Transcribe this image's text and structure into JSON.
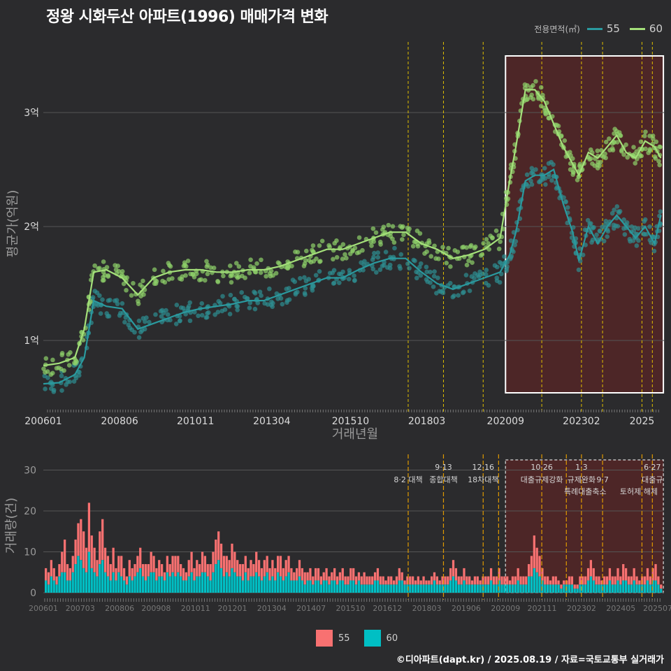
{
  "title": "정왕 시화두산 아파트(1996) 매매가격 변화",
  "legend_top": {
    "title": "전용면적(㎡)",
    "items": [
      {
        "label": "55",
        "color": "#2a9a9f"
      },
      {
        "label": "60",
        "color": "#a4e07a"
      }
    ]
  },
  "legend_bottom": {
    "items": [
      {
        "label": "55",
        "color": "#f87171"
      },
      {
        "label": "60",
        "color": "#00bfc4"
      }
    ]
  },
  "credit": "©디아파트(dapt.kr) / 2025.08.19 / 자료=국토교통부 실거래가",
  "colors": {
    "bg": "#2b2b2d",
    "s55_line": "#2a9a9f",
    "s60_line": "#a4e07a",
    "s55_point": "#2e8f92",
    "s60_point": "#8fd16a",
    "bar55": "#f87171",
    "bar60": "#00bfc4",
    "policy_line": "#e0c000",
    "policy_line2": "#e09a00",
    "highlight": "#5a2626"
  },
  "chart_data": [
    {
      "type": "line",
      "title": "정왕 시화두산 아파트(1996) 매매가격 변화",
      "xlabel": "거래년월",
      "ylabel": "평균가(억원)",
      "x_tick_labels": [
        "200601",
        "200806",
        "201011",
        "201304",
        "201510",
        "201803",
        "202009",
        "202302",
        "2025"
      ],
      "y_tick_labels": [
        "1억",
        "2억",
        "3억"
      ],
      "y_ticks": [
        1,
        2,
        3
      ],
      "ylim": [
        0.4,
        3.65
      ],
      "xlim": [
        2006.0,
        2025.7
      ],
      "grid": true,
      "legend": "top-right",
      "policy_lines_year": [
        2017.58,
        2018.7,
        2019.96,
        2021.82,
        2023.08,
        2023.75,
        2025.0,
        2025.33
      ],
      "highlight_range_year": [
        2020.67,
        2025.68
      ],
      "series": [
        {
          "name": "55",
          "x": [
            2006.0,
            2006.5,
            2007.0,
            2007.3,
            2007.6,
            2008.0,
            2008.5,
            2009.0,
            2009.5,
            2010.0,
            2010.5,
            2011.0,
            2011.5,
            2012.0,
            2012.5,
            2013.0,
            2013.5,
            2014.0,
            2014.5,
            2015.0,
            2015.5,
            2016.0,
            2016.5,
            2017.0,
            2017.5,
            2018.0,
            2018.5,
            2019.0,
            2019.5,
            2020.0,
            2020.5,
            2020.8,
            2021.0,
            2021.3,
            2021.6,
            2021.9,
            2022.2,
            2022.5,
            2022.8,
            2023.0,
            2023.3,
            2023.6,
            2023.9,
            2024.2,
            2024.5,
            2024.8,
            2025.1,
            2025.4,
            2025.6
          ],
          "y": [
            0.62,
            0.63,
            0.7,
            0.85,
            1.35,
            1.3,
            1.28,
            1.1,
            1.15,
            1.2,
            1.25,
            1.28,
            1.3,
            1.32,
            1.35,
            1.35,
            1.4,
            1.45,
            1.5,
            1.55,
            1.55,
            1.62,
            1.68,
            1.72,
            1.72,
            1.6,
            1.5,
            1.45,
            1.5,
            1.55,
            1.6,
            1.75,
            1.95,
            2.4,
            2.45,
            2.45,
            2.5,
            2.2,
            1.95,
            1.7,
            2.0,
            1.85,
            2.0,
            2.1,
            2.0,
            1.9,
            2.0,
            1.85,
            2.1
          ]
        },
        {
          "name": "60",
          "x": [
            2006.0,
            2006.5,
            2007.0,
            2007.3,
            2007.6,
            2008.0,
            2008.5,
            2009.0,
            2009.5,
            2010.0,
            2010.5,
            2011.0,
            2011.5,
            2012.0,
            2012.5,
            2013.0,
            2013.5,
            2014.0,
            2014.5,
            2015.0,
            2015.5,
            2016.0,
            2016.5,
            2017.0,
            2017.5,
            2018.0,
            2018.5,
            2019.0,
            2019.5,
            2020.0,
            2020.5,
            2020.8,
            2021.0,
            2021.3,
            2021.6,
            2021.9,
            2022.2,
            2022.5,
            2022.8,
            2023.0,
            2023.3,
            2023.6,
            2023.9,
            2024.2,
            2024.5,
            2024.8,
            2025.1,
            2025.4,
            2025.6
          ],
          "y": [
            0.78,
            0.8,
            0.85,
            1.1,
            1.6,
            1.62,
            1.55,
            1.4,
            1.55,
            1.6,
            1.62,
            1.62,
            1.6,
            1.6,
            1.62,
            1.62,
            1.65,
            1.7,
            1.75,
            1.8,
            1.8,
            1.85,
            1.9,
            1.95,
            1.95,
            1.85,
            1.8,
            1.72,
            1.75,
            1.8,
            1.9,
            2.4,
            2.7,
            3.2,
            3.2,
            3.1,
            2.9,
            2.7,
            2.55,
            2.45,
            2.65,
            2.6,
            2.7,
            2.8,
            2.65,
            2.6,
            2.75,
            2.7,
            2.6
          ]
        }
      ]
    },
    {
      "type": "bar",
      "title": "",
      "xlabel": "",
      "ylabel": "거래량(건)",
      "x_tick_labels": [
        "200601",
        "200703",
        "200806",
        "200908",
        "201011",
        "201201",
        "201304",
        "201407",
        "201510",
        "201612",
        "201803",
        "201906",
        "202009",
        "202111",
        "202302",
        "202405",
        "202507"
      ],
      "y_tick_labels": [
        "0",
        "10",
        "20",
        "30"
      ],
      "y_ticks": [
        0,
        10,
        20,
        30
      ],
      "ylim": [
        0,
        33
      ],
      "grid": true,
      "legend": "bottom",
      "stacked": true,
      "policy_lines_year": [
        2017.58,
        2018.7,
        2019.96,
        2020.45,
        2021.82,
        2022.6,
        2023.08,
        2023.75,
        2025.0,
        2025.33
      ],
      "highlight_range_year": [
        2020.67,
        2025.68
      ],
      "annotations": [
        {
          "text": "8·2 대책",
          "x": 2017.58,
          "row": 1
        },
        {
          "text": "9·13",
          "x": 2018.7,
          "row": 0
        },
        {
          "text": "종합대책",
          "x": 2018.7,
          "row": 1
        },
        {
          "text": "12·16",
          "x": 2019.96,
          "row": 0
        },
        {
          "text": "18차대책",
          "x": 2019.96,
          "row": 1
        },
        {
          "text": "10·26",
          "x": 2021.82,
          "row": 0
        },
        {
          "text": "대출규제강화",
          "x": 2021.82,
          "row": 1
        },
        {
          "text": "1·3",
          "x": 2023.08,
          "row": 0
        },
        {
          "text": "규제완화",
          "x": 2023.08,
          "row": 1
        },
        {
          "text": "9·7",
          "x": 2023.75,
          "row": 1
        },
        {
          "text": "특례대출축소",
          "x": 2023.2,
          "row": 2
        },
        {
          "text": "토허제 해제",
          "x": 2024.9,
          "row": 2
        },
        {
          "text": "6·27",
          "x": 2025.33,
          "row": 0
        },
        {
          "text": "대출규",
          "x": 2025.33,
          "row": 1
        }
      ],
      "series": [
        {
          "name": "55",
          "monthly_values": [
            3,
            3,
            4,
            3,
            2,
            3,
            5,
            8,
            4,
            3,
            4,
            6,
            8,
            10,
            9,
            6,
            12,
            8,
            6,
            4,
            8,
            10,
            6,
            5,
            4,
            6,
            3,
            4,
            5,
            3,
            2,
            4,
            3,
            3,
            4,
            5,
            3,
            4,
            3,
            5,
            4,
            3,
            4,
            3,
            2,
            4,
            3,
            4,
            5,
            4,
            3,
            3,
            2,
            4,
            5,
            3,
            4,
            3,
            5,
            4,
            3,
            4,
            5,
            6,
            7,
            6,
            5,
            4,
            4,
            6,
            5,
            4,
            3,
            4,
            4,
            3,
            4,
            3,
            5,
            4,
            3,
            4,
            4,
            3,
            4,
            3,
            4,
            5,
            3,
            4,
            4,
            3,
            2,
            3,
            4,
            3,
            3,
            2,
            3,
            2,
            3,
            3,
            2,
            2,
            3,
            2,
            2,
            3,
            2,
            2,
            3,
            2,
            2,
            3,
            3,
            2,
            2,
            2,
            3,
            2,
            2,
            2,
            2,
            3,
            2,
            2,
            1,
            2,
            2,
            1,
            2,
            3,
            2,
            1,
            2,
            2,
            2,
            1,
            2,
            1,
            2,
            1,
            1,
            2,
            2,
            2,
            1,
            2,
            2,
            2,
            3,
            4,
            3,
            2,
            2,
            3,
            2,
            2,
            1,
            2,
            2,
            1,
            2,
            2,
            2,
            3,
            2,
            2,
            3,
            2,
            2,
            2,
            1,
            2,
            2,
            3,
            2,
            2,
            2,
            3,
            5,
            8,
            6,
            5,
            3,
            2,
            2,
            1,
            2,
            2,
            1,
            1,
            1,
            1,
            2,
            2,
            1,
            1,
            2,
            2,
            2,
            3,
            4,
            3,
            2,
            2,
            1,
            2,
            2,
            3,
            2,
            2,
            3,
            2,
            4,
            3,
            2,
            2,
            3,
            2,
            1,
            2,
            2,
            3,
            2,
            3,
            4,
            2,
            1
          ],
          "note": "approximate"
        },
        {
          "name": "60",
          "monthly_values": [
            3,
            2,
            4,
            3,
            2,
            4,
            5,
            5,
            3,
            3,
            5,
            7,
            9,
            8,
            6,
            5,
            10,
            6,
            5,
            4,
            7,
            8,
            5,
            4,
            3,
            5,
            3,
            5,
            4,
            3,
            2,
            4,
            3,
            4,
            5,
            6,
            4,
            3,
            4,
            5,
            5,
            3,
            4,
            4,
            3,
            5,
            4,
            5,
            4,
            5,
            4,
            3,
            3,
            4,
            5,
            3,
            4,
            4,
            5,
            5,
            4,
            3,
            5,
            7,
            8,
            6,
            4,
            5,
            4,
            6,
            5,
            4,
            4,
            3,
            5,
            3,
            4,
            4,
            5,
            4,
            3,
            4,
            5,
            3,
            4,
            3,
            5,
            4,
            3,
            4,
            5,
            3,
            3,
            3,
            4,
            3,
            2,
            3,
            3,
            2,
            3,
            3,
            2,
            3,
            3,
            2,
            3,
            3,
            2,
            3,
            3,
            2,
            2,
            3,
            3,
            2,
            3,
            2,
            2,
            2,
            2,
            2,
            3,
            3,
            2,
            2,
            2,
            2,
            2,
            2,
            2,
            3,
            3,
            2,
            2,
            2,
            2,
            2,
            2,
            2,
            2,
            2,
            2,
            2,
            3,
            2,
            2,
            2,
            2,
            2,
            3,
            4,
            3,
            2,
            2,
            3,
            2,
            2,
            2,
            2,
            2,
            2,
            2,
            2,
            2,
            3,
            2,
            2,
            3,
            2,
            2,
            2,
            2,
            2,
            2,
            3,
            2,
            2,
            2,
            4,
            4,
            6,
            5,
            4,
            3,
            2,
            2,
            2,
            2,
            2,
            2,
            1,
            2,
            2,
            2,
            2,
            1,
            1,
            2,
            2,
            2,
            3,
            4,
            3,
            2,
            2,
            2,
            2,
            2,
            3,
            2,
            2,
            3,
            2,
            3,
            3,
            2,
            2,
            3,
            2,
            2,
            2,
            2,
            3,
            2,
            3,
            3,
            2,
            1
          ],
          "note": "approximate"
        }
      ]
    }
  ]
}
